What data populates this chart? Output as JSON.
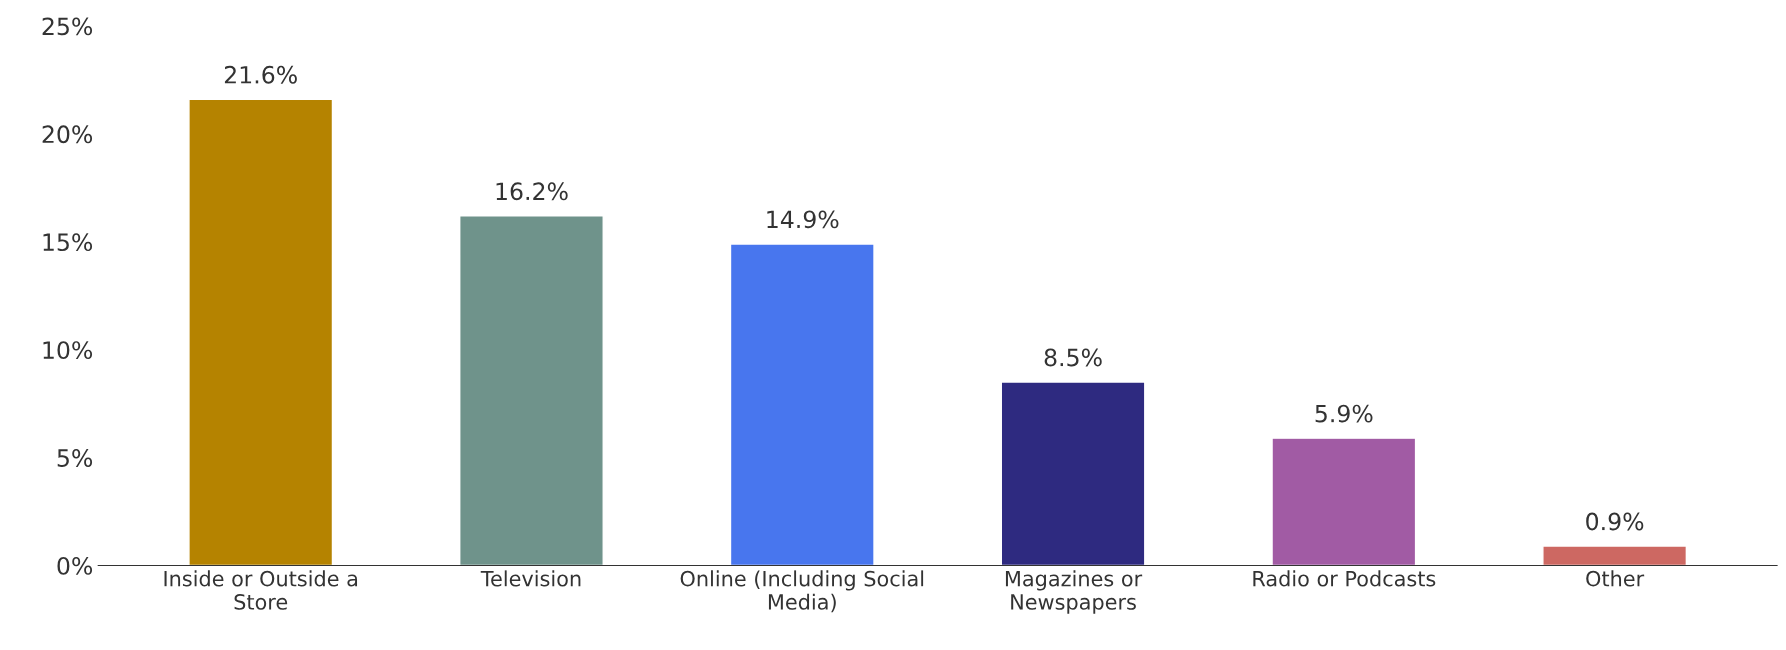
{
  "chart_data": {
    "type": "bar",
    "categories": [
      "Inside or Outside a\nStore",
      "Television",
      "Online (Including Social\nMedia)",
      "Magazines or\nNewspapers",
      "Radio or Podcasts",
      "Other"
    ],
    "values": [
      21.6,
      16.2,
      14.9,
      8.5,
      5.9,
      0.9
    ],
    "colors": [
      "#b58300",
      "#6f938b",
      "#4876ee",
      "#2e2a80",
      "#a15ba4",
      "#cd6862"
    ],
    "value_labels": [
      "21.6%",
      "16.2%",
      "14.9%",
      "8.5%",
      "5.9%",
      "0.9%"
    ],
    "ylim": [
      0,
      25
    ],
    "yticks": [
      {
        "value": 0,
        "label": "0%"
      },
      {
        "value": 5,
        "label": "5%"
      },
      {
        "value": 10,
        "label": "10%"
      },
      {
        "value": 15,
        "label": "15%"
      },
      {
        "value": 20,
        "label": "20%"
      },
      {
        "value": 25,
        "label": "25%"
      }
    ],
    "grid": false,
    "legend": false
  }
}
